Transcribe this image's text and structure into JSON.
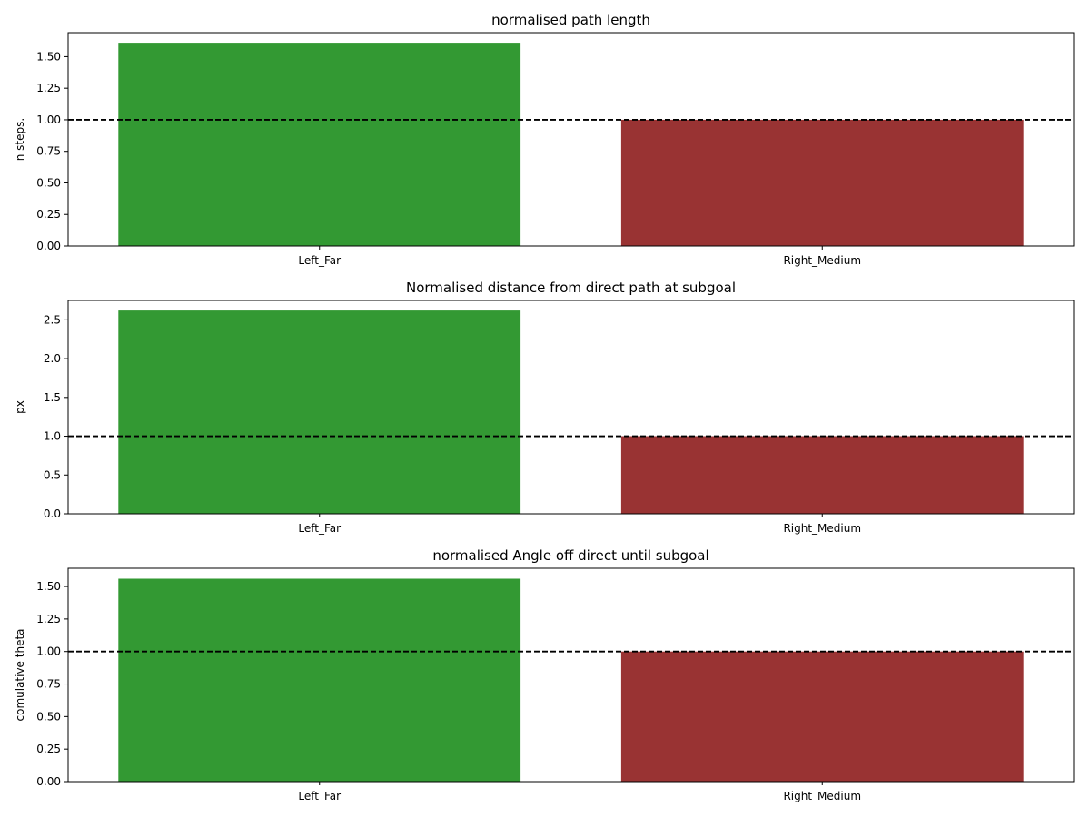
{
  "chart_data": [
    {
      "type": "bar",
      "title": "normalised path length",
      "xlabel": "",
      "ylabel": "n steps.",
      "categories": [
        "Left_Far",
        "Right_Medium"
      ],
      "values": [
        1.61,
        1.0
      ],
      "bar_colors": [
        "#339933",
        "#993333"
      ],
      "reference_line": 1.0,
      "ylim": [
        0,
        1.69
      ],
      "yticks": [
        0.0,
        0.25,
        0.5,
        0.75,
        1.0,
        1.25,
        1.5
      ],
      "ytick_labels": [
        "0.00",
        "0.25",
        "0.50",
        "0.75",
        "1.00",
        "1.25",
        "1.50"
      ],
      "grid": false
    },
    {
      "type": "bar",
      "title": "Normalised distance from direct path at subgoal",
      "xlabel": "",
      "ylabel": "px",
      "categories": [
        "Left_Far",
        "Right_Medium"
      ],
      "values": [
        2.62,
        1.0
      ],
      "bar_colors": [
        "#339933",
        "#993333"
      ],
      "reference_line": 1.0,
      "ylim": [
        0,
        2.75
      ],
      "yticks": [
        0.0,
        0.5,
        1.0,
        1.5,
        2.0,
        2.5
      ],
      "ytick_labels": [
        "0.0",
        "0.5",
        "1.0",
        "1.5",
        "2.0",
        "2.5"
      ],
      "grid": false
    },
    {
      "type": "bar",
      "title": "normalised Angle off direct until subgoal",
      "xlabel": "",
      "ylabel": "comulative theta",
      "categories": [
        "Left_Far",
        "Right_Medium"
      ],
      "values": [
        1.56,
        1.0
      ],
      "bar_colors": [
        "#339933",
        "#993333"
      ],
      "reference_line": 1.0,
      "ylim": [
        0,
        1.64
      ],
      "yticks": [
        0.0,
        0.25,
        0.5,
        0.75,
        1.0,
        1.25,
        1.5
      ],
      "ytick_labels": [
        "0.00",
        "0.25",
        "0.50",
        "0.75",
        "1.00",
        "1.25",
        "1.50"
      ],
      "grid": false
    }
  ]
}
